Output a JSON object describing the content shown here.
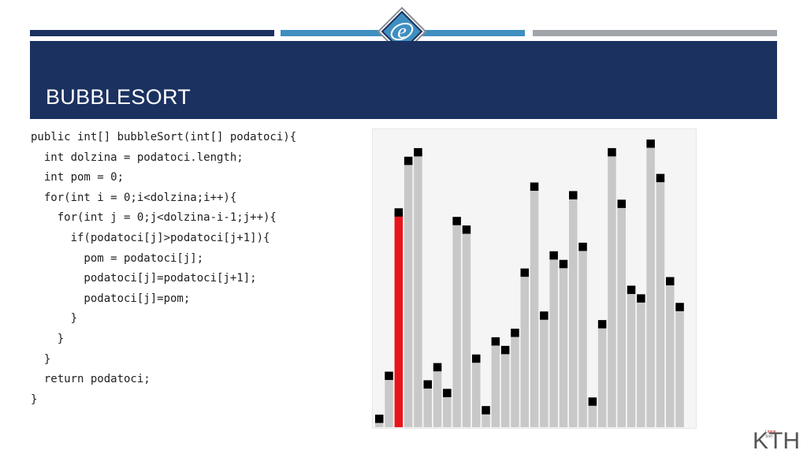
{
  "slide": {
    "title": "BUBBLESORT",
    "code_lines": [
      "public int[] bubbleSort(int[] podatoci){",
      "  int dolzina = podatoci.length;",
      "  int pom = 0;",
      "  for(int i = 0;i<dolzina;i++){",
      "    for(int j = 0;j<dolzina-i-1;j++){",
      "      if(podatoci[j]>podatoci[j+1]){",
      "        pom = podatoci[j];",
      "        podatoci[j]=podatoci[j+1];",
      "        podatoci[j]=pom;",
      "      }",
      "    }",
      "  }",
      "  return podatoci;",
      "}"
    ]
  },
  "colors": {
    "header_dark": "#1b3160",
    "header_mid": "#3f8fc0",
    "header_gray": "#a0a4a8",
    "bar_fill": "#c8c8c8",
    "bar_highlight": "#e8141b",
    "marker": "#000000"
  },
  "visualization": {
    "highlighted_index": 2,
    "values": [
      1,
      6,
      25,
      31,
      32,
      5,
      7,
      4,
      24,
      23,
      8,
      2,
      10,
      9,
      11,
      18,
      28,
      13,
      20,
      19,
      27,
      21,
      3,
      12,
      32,
      26,
      16,
      15,
      33,
      29,
      17,
      14
    ]
  },
  "corner_logo": {
    "text": "KTH",
    "small_lines": [
      "Linear",
      "Sort"
    ]
  }
}
